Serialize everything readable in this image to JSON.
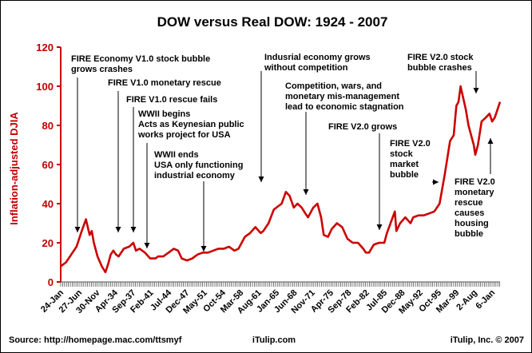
{
  "colors": {
    "series": "#cc0000",
    "axis": "#cc0000",
    "text": "#000000"
  },
  "footer": {
    "source": "Source: http://homepage.mac.com/ttsmyf",
    "center": "iTulip.com",
    "right": "iTulip, Inc. © 2007"
  },
  "chart_data": {
    "type": "line",
    "title": "DOW versus Real DOW: 1924 - 2007",
    "ylabel": "Inflation-adjusted DJIA",
    "xlabel": "",
    "ylim": [
      0,
      120
    ],
    "yticks": [
      0,
      20,
      40,
      60,
      80,
      100,
      120
    ],
    "grid": false,
    "legend": "none",
    "xlim": [
      1924.0,
      2007.5
    ],
    "xtick_labels": [
      {
        "x": 1924.0,
        "label": "24-Jan"
      },
      {
        "x": 1927.5,
        "label": "27-Jun"
      },
      {
        "x": 1930.9,
        "label": "30-Nov"
      },
      {
        "x": 1934.3,
        "label": "Apr-34"
      },
      {
        "x": 1937.7,
        "label": "Sep-37"
      },
      {
        "x": 1941.1,
        "label": "Feb-41"
      },
      {
        "x": 1944.5,
        "label": "Jul-44"
      },
      {
        "x": 1947.9,
        "label": "Dec-47"
      },
      {
        "x": 1951.3,
        "label": "May-51"
      },
      {
        "x": 1954.8,
        "label": "Oct-54"
      },
      {
        "x": 1958.2,
        "label": "Mar-58"
      },
      {
        "x": 1961.6,
        "label": "Aug-61"
      },
      {
        "x": 1965.0,
        "label": "Jan-65"
      },
      {
        "x": 1968.4,
        "label": "Jun-68"
      },
      {
        "x": 1971.8,
        "label": "Nov-71"
      },
      {
        "x": 1975.3,
        "label": "Apr-75"
      },
      {
        "x": 1978.7,
        "label": "Sep-78"
      },
      {
        "x": 1982.1,
        "label": "Feb-82"
      },
      {
        "x": 1985.5,
        "label": "Jul-85"
      },
      {
        "x": 1988.9,
        "label": "Dec-88"
      },
      {
        "x": 1992.3,
        "label": "May-92"
      },
      {
        "x": 1995.8,
        "label": "Oct-95"
      },
      {
        "x": 1999.2,
        "label": "Mar-99"
      },
      {
        "x": 2002.6,
        "label": "2-Aug"
      },
      {
        "x": 2006.0,
        "label": "6-Jan"
      }
    ],
    "series": [
      {
        "x": [
          1924.0,
          1925.0,
          1926.0,
          1927.0,
          1928.0,
          1928.8,
          1929.5,
          1929.9,
          1930.3,
          1931.0,
          1931.8,
          1932.5,
          1933.0,
          1933.5,
          1934.0,
          1934.5,
          1935.0,
          1936.0,
          1937.0,
          1937.8,
          1938.3,
          1939.0,
          1940.0,
          1941.0,
          1942.0,
          1942.5,
          1943.5,
          1944.5,
          1945.5,
          1946.3,
          1947.0,
          1948.0,
          1949.0,
          1950.0,
          1951.0,
          1952.0,
          1953.0,
          1954.0,
          1955.0,
          1956.0,
          1957.0,
          1957.8,
          1959.0,
          1960.0,
          1961.0,
          1962.0,
          1962.5,
          1963.5,
          1964.5,
          1965.5,
          1966.0,
          1966.8,
          1967.5,
          1968.3,
          1969.0,
          1969.8,
          1970.5,
          1971.0,
          1972.0,
          1972.8,
          1973.5,
          1974.0,
          1974.8,
          1975.5,
          1976.5,
          1977.5,
          1978.5,
          1979.5,
          1980.5,
          1981.5,
          1982.0,
          1982.6,
          1983.5,
          1984.5,
          1985.5,
          1986.0,
          1987.5,
          1987.8,
          1988.5,
          1989.5,
          1990.5,
          1991.0,
          1992.0,
          1993.0,
          1994.0,
          1995.0,
          1996.0,
          1997.0,
          1998.0,
          1998.7,
          1999.2,
          1999.6,
          2000.0,
          2000.5,
          2001.0,
          2001.5,
          2002.0,
          2002.5,
          2002.8,
          2003.3,
          2004.0,
          2004.8,
          2005.5,
          2006.0,
          2006.5,
          2007.0,
          2007.5
        ],
        "values": [
          8,
          10,
          14,
          18,
          26,
          32,
          24,
          26,
          20,
          13,
          8,
          5,
          9,
          14,
          16,
          14,
          13,
          17,
          18,
          20,
          16,
          17,
          15,
          12,
          12,
          13,
          13,
          15,
          17,
          16,
          12,
          11,
          12,
          14,
          15,
          15,
          16,
          17,
          17,
          18,
          16,
          17,
          23,
          25,
          28,
          25,
          26,
          30,
          37,
          39,
          40,
          46,
          44,
          38,
          40,
          38,
          35,
          33,
          38,
          40,
          33,
          24,
          23,
          27,
          30,
          28,
          22,
          20,
          20,
          17,
          15,
          15,
          19,
          20,
          20,
          25,
          36,
          26,
          30,
          33,
          30,
          33,
          34,
          34,
          35,
          36,
          40,
          55,
          72,
          75,
          90,
          92,
          100,
          94,
          88,
          80,
          75,
          70,
          65,
          70,
          82,
          84,
          86,
          82,
          84,
          88,
          92
        ]
      }
    ],
    "annotations": [
      {
        "text": [
          "FIRE Economy V1.0 stock bubble",
          "grows crashes"
        ]
      },
      {
        "text": [
          "FIRE V1.0 monetary rescue"
        ]
      },
      {
        "text": [
          "FIRE V1.0 rescue fails"
        ]
      },
      {
        "text": [
          "WWII begins",
          "Acts as Keynesian public",
          "works project for USA"
        ]
      },
      {
        "text": [
          "WWII ends",
          "USA only functioning",
          "industrial economy"
        ]
      },
      {
        "text": [
          "Indusrial economy grows",
          "without competition"
        ]
      },
      {
        "text": [
          "Competition, wars, and",
          "monetary mis-management",
          "lead to economic stagnation"
        ]
      },
      {
        "text": [
          "FIRE V2.0 grows"
        ]
      },
      {
        "text": [
          "FIRE V2.0",
          "stock",
          "market",
          "bubble"
        ]
      },
      {
        "text": [
          "FIRE V2.0 stock",
          "bubble crashes"
        ]
      },
      {
        "text": [
          "FIRE V2.0",
          "monetary",
          "rescue",
          "causes",
          "housing",
          "bubble"
        ]
      }
    ]
  }
}
